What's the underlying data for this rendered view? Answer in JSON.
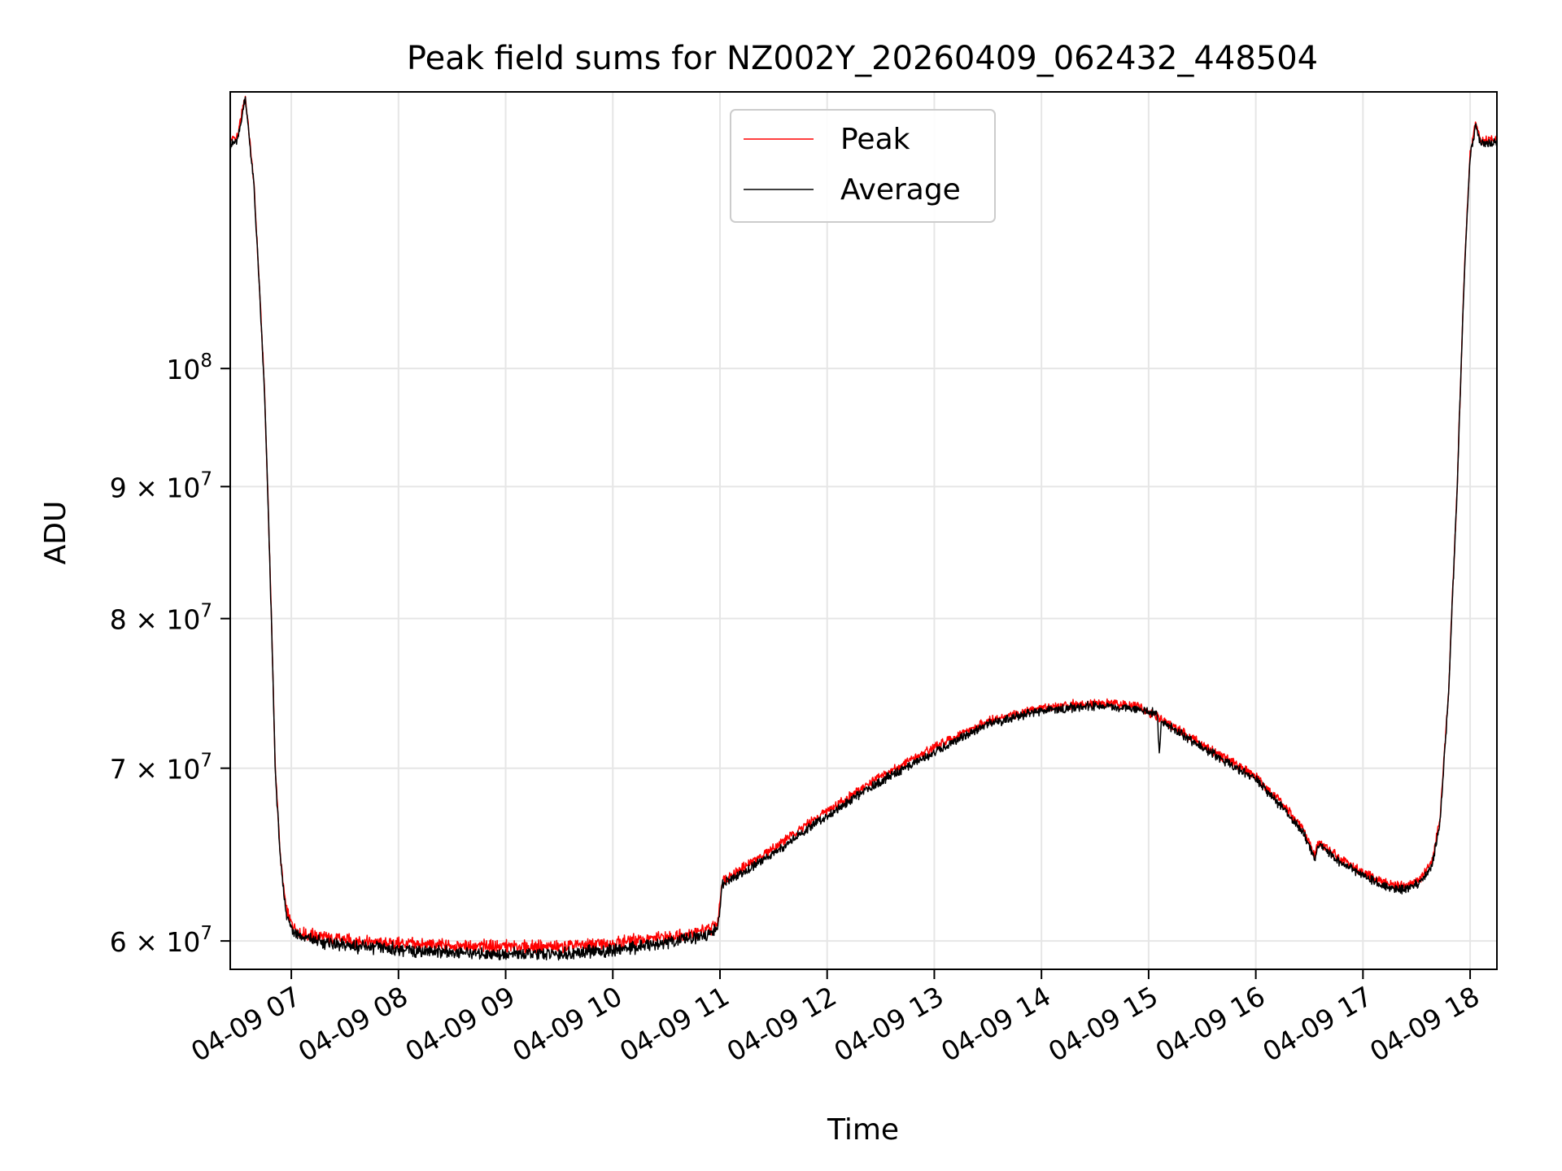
{
  "chart_data": {
    "type": "line",
    "title": "Peak field sums for NZ002Y_20260409_062432_448504",
    "xlabel": "Time",
    "ylabel": "ADU",
    "yscale": "log",
    "grid": true,
    "xlim": [
      6.43,
      18.25
    ],
    "ylim": [
      58500000,
      128000000
    ],
    "x_ticks": [
      {
        "value": 7,
        "label": "04-09 07"
      },
      {
        "value": 8,
        "label": "04-09 08"
      },
      {
        "value": 9,
        "label": "04-09 09"
      },
      {
        "value": 10,
        "label": "04-09 10"
      },
      {
        "value": 11,
        "label": "04-09 11"
      },
      {
        "value": 12,
        "label": "04-09 12"
      },
      {
        "value": 13,
        "label": "04-09 13"
      },
      {
        "value": 14,
        "label": "04-09 14"
      },
      {
        "value": 15,
        "label": "04-09 15"
      },
      {
        "value": 16,
        "label": "04-09 16"
      },
      {
        "value": 17,
        "label": "04-09 17"
      },
      {
        "value": 18,
        "label": "04-09 18"
      }
    ],
    "y_ticks": [
      {
        "value": 60000000,
        "base": "6 × 10",
        "exp": "7"
      },
      {
        "value": 70000000,
        "base": "7 × 10",
        "exp": "7"
      },
      {
        "value": 80000000,
        "base": "8 × 10",
        "exp": "7"
      },
      {
        "value": 90000000,
        "base": "9 × 10",
        "exp": "7"
      },
      {
        "value": 100000000,
        "base": "10",
        "exp": "8"
      }
    ],
    "legend": {
      "position": "upper-center",
      "entries": [
        {
          "name": "Peak",
          "color": "#ff0000"
        },
        {
          "name": "Average",
          "color": "#000000"
        }
      ]
    },
    "series": [
      {
        "name": "Peak",
        "color": "#ff0000",
        "points": [
          [
            6.43,
            122500000
          ],
          [
            6.5,
            123000000
          ],
          [
            6.57,
            127500000
          ],
          [
            6.6,
            124000000
          ],
          [
            6.65,
            118000000
          ],
          [
            6.7,
            108000000
          ],
          [
            6.75,
            98000000
          ],
          [
            6.8,
            84000000
          ],
          [
            6.85,
            70000000
          ],
          [
            6.9,
            64500000
          ],
          [
            6.95,
            61800000
          ],
          [
            7.0,
            60900000
          ],
          [
            7.1,
            60400000
          ],
          [
            7.3,
            60200000
          ],
          [
            7.6,
            60000000
          ],
          [
            8.0,
            59850000
          ],
          [
            8.5,
            59750000
          ],
          [
            9.0,
            59700000
          ],
          [
            9.5,
            59700000
          ],
          [
            10.0,
            59900000
          ],
          [
            10.5,
            60200000
          ],
          [
            10.9,
            60600000
          ],
          [
            10.98,
            61000000
          ],
          [
            11.02,
            63300000
          ],
          [
            11.2,
            64000000
          ],
          [
            11.5,
            65200000
          ],
          [
            12.0,
            67400000
          ],
          [
            12.5,
            69500000
          ],
          [
            13.0,
            71300000
          ],
          [
            13.5,
            73000000
          ],
          [
            14.0,
            73900000
          ],
          [
            14.5,
            74200000
          ],
          [
            14.9,
            74000000
          ],
          [
            15.1,
            73200000
          ],
          [
            15.5,
            71500000
          ],
          [
            16.0,
            69500000
          ],
          [
            16.3,
            67400000
          ],
          [
            16.45,
            66200000
          ],
          [
            16.5,
            65500000
          ],
          [
            16.55,
            64700000
          ],
          [
            16.58,
            65500000
          ],
          [
            16.62,
            65400000
          ],
          [
            16.8,
            64500000
          ],
          [
            17.0,
            63800000
          ],
          [
            17.2,
            63200000
          ],
          [
            17.4,
            63000000
          ],
          [
            17.55,
            63500000
          ],
          [
            17.65,
            64500000
          ],
          [
            17.72,
            67000000
          ],
          [
            17.8,
            75000000
          ],
          [
            17.88,
            90000000
          ],
          [
            17.95,
            110000000
          ],
          [
            18.0,
            121000000
          ],
          [
            18.05,
            124500000
          ],
          [
            18.1,
            122500000
          ],
          [
            18.25,
            122800000
          ]
        ]
      },
      {
        "name": "Average",
        "color": "#000000",
        "points": [
          [
            6.43,
            122000000
          ],
          [
            6.5,
            122600000
          ],
          [
            6.57,
            127300000
          ],
          [
            6.6,
            123800000
          ],
          [
            6.65,
            117800000
          ],
          [
            6.7,
            107800000
          ],
          [
            6.75,
            97800000
          ],
          [
            6.8,
            83800000
          ],
          [
            6.85,
            69800000
          ],
          [
            6.9,
            64300000
          ],
          [
            6.95,
            61600000
          ],
          [
            7.0,
            60700000
          ],
          [
            7.1,
            60200000
          ],
          [
            7.3,
            59900000
          ],
          [
            7.6,
            59700000
          ],
          [
            8.0,
            59550000
          ],
          [
            8.5,
            59400000
          ],
          [
            9.0,
            59300000
          ],
          [
            9.5,
            59300000
          ],
          [
            10.0,
            59500000
          ],
          [
            10.5,
            59900000
          ],
          [
            10.9,
            60300000
          ],
          [
            10.98,
            60700000
          ],
          [
            11.02,
            63100000
          ],
          [
            11.2,
            63700000
          ],
          [
            11.5,
            64900000
          ],
          [
            12.0,
            67100000
          ],
          [
            12.5,
            69200000
          ],
          [
            13.0,
            71000000
          ],
          [
            13.5,
            72800000
          ],
          [
            14.0,
            73700000
          ],
          [
            14.5,
            74000000
          ],
          [
            14.9,
            73800000
          ],
          [
            15.08,
            73500000
          ],
          [
            15.1,
            70900000
          ],
          [
            15.12,
            73000000
          ],
          [
            15.5,
            71300000
          ],
          [
            16.0,
            69300000
          ],
          [
            16.3,
            67200000
          ],
          [
            16.45,
            66000000
          ],
          [
            16.5,
            65300000
          ],
          [
            16.55,
            64500000
          ],
          [
            16.58,
            65300000
          ],
          [
            16.62,
            65200000
          ],
          [
            16.8,
            64300000
          ],
          [
            17.0,
            63600000
          ],
          [
            17.2,
            63000000
          ],
          [
            17.4,
            62800000
          ],
          [
            17.55,
            63300000
          ],
          [
            17.65,
            64300000
          ],
          [
            17.72,
            66800000
          ],
          [
            17.8,
            74800000
          ],
          [
            17.88,
            89800000
          ],
          [
            17.95,
            109800000
          ],
          [
            18.0,
            120800000
          ],
          [
            18.05,
            124200000
          ],
          [
            18.1,
            122200000
          ],
          [
            18.25,
            122300000
          ]
        ]
      }
    ]
  }
}
